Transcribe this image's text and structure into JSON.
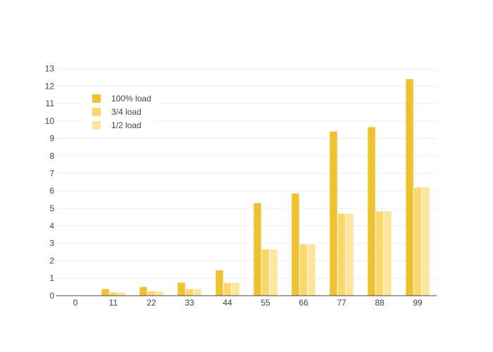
{
  "chart_data": {
    "type": "bar",
    "categories": [
      "0",
      "11",
      "22",
      "33",
      "44",
      "55",
      "66",
      "77",
      "88",
      "99"
    ],
    "series": [
      {
        "name": "100% load",
        "color": "#f0c232",
        "values": [
          0,
          0.38,
          0.5,
          0.75,
          1.45,
          5.3,
          5.85,
          9.4,
          9.65,
          12.4
        ]
      },
      {
        "name": "3/4 load",
        "color": "#fbd86b",
        "values": [
          0,
          0.19,
          0.25,
          0.375,
          0.725,
          2.65,
          2.93,
          4.7,
          4.83,
          6.2
        ]
      },
      {
        "name": "1/2 load",
        "color": "#fde59d",
        "values": [
          0,
          0.19,
          0.25,
          0.375,
          0.725,
          2.65,
          2.93,
          4.7,
          4.83,
          6.2
        ]
      }
    ],
    "y_ticks": [
      "0",
      "1",
      "2",
      "3",
      "4",
      "5",
      "6",
      "7",
      "8",
      "9",
      "10",
      "11",
      "12",
      "13"
    ],
    "ylim": [
      0,
      13.3
    ],
    "grid": true,
    "legend_position": "top-left",
    "title": "",
    "xlabel": "",
    "ylabel": ""
  }
}
